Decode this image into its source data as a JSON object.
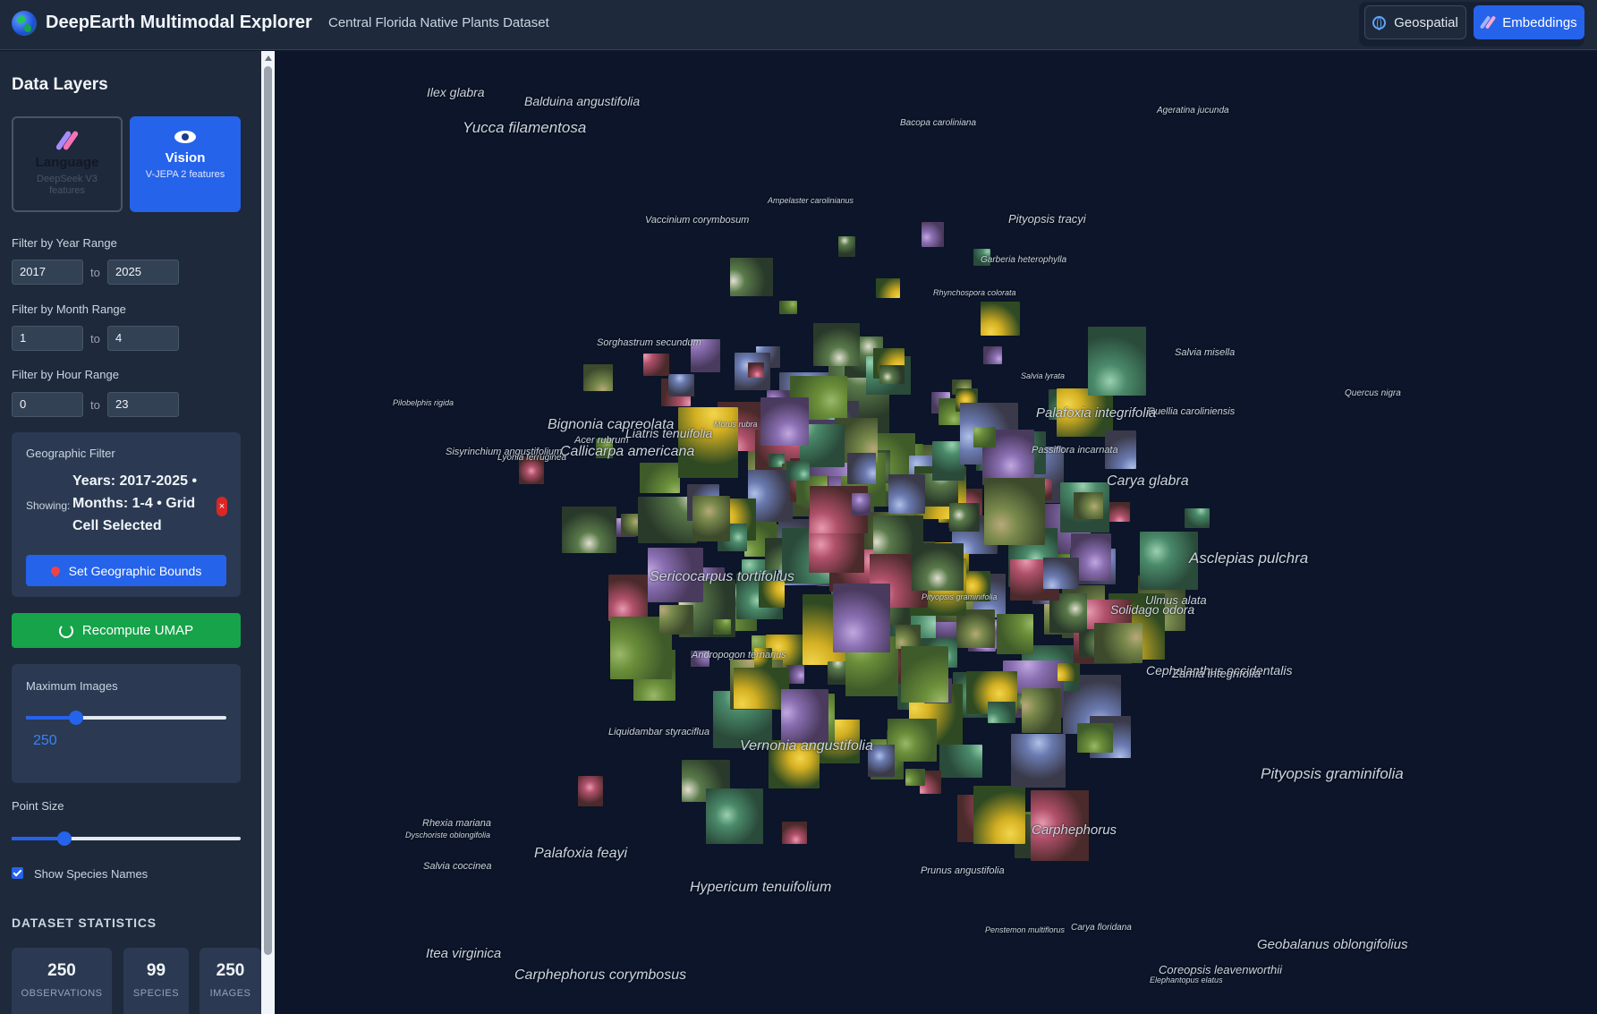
{
  "header": {
    "title": "DeepEarth Multimodal Explorer",
    "subtitle": "Central Florida Native Plants Dataset",
    "geospatial_label": "Geospatial",
    "embeddings_label": "Embeddings"
  },
  "sidebar": {
    "title": "Data Layers",
    "layers": [
      {
        "name": "Language",
        "desc": "DeepSeek V3 features",
        "active": false
      },
      {
        "name": "Vision",
        "desc": "V-JEPA 2 features",
        "active": true
      }
    ],
    "year": {
      "label": "Filter by Year Range",
      "from": "2017",
      "to": "2025"
    },
    "month": {
      "label": "Filter by Month Range",
      "from": "1",
      "to": "4"
    },
    "hour": {
      "label": "Filter by Hour Range",
      "from": "0",
      "to": "23"
    },
    "to_label": "to",
    "geo": {
      "title": "Geographic Filter",
      "showing": "Showing:",
      "text": "Years: 2017-2025 • Months: 1-4 • Grid Cell Selected",
      "clear": "×",
      "button": "Set Geographic Bounds"
    },
    "recompute": "Recompute UMAP",
    "max_images": {
      "label": "Maximum Images",
      "value": "250",
      "fraction": 0.25
    },
    "point_size": {
      "label": "Point Size",
      "fraction": 0.23
    },
    "show_names": {
      "label": "Show Species Names",
      "checked": true
    },
    "stats": {
      "title": "DATASET STATISTICS",
      "items": [
        {
          "num": "250",
          "label": "OBSERVATIONS"
        },
        {
          "num": "99",
          "label": "SPECIES"
        },
        {
          "num": "250",
          "label": "IMAGES"
        }
      ]
    }
  },
  "canvas": {
    "species_labels": [
      "Callicarpa americana",
      "Ulmus alata",
      "Vaccinium corymbosum",
      "Sericocarpus tortifolius",
      "Carya glabra",
      "Bacopa caroliniana",
      "Coreopsis leavenworthii",
      "Carphephorus",
      "Quercus nigra",
      "Morus rubra",
      "Acer rubrum",
      "Liquidambar styraciflua",
      "Passiflora incarnata",
      "Rhexia mariana",
      "Dyschoriste oblongifolia",
      "Vernonia angustifolia",
      "Pityopsis graminifolia",
      "Pilobelphis rigida",
      "Balduina angustifolia",
      "Hypericum tenuifolium",
      "Geobalanus oblongifolius",
      "Carya floridana",
      "Salvia coccinea",
      "Sorghastrum secundum",
      "Pityopsis tracyi",
      "Ruellia caroliniensis",
      "Ageratina jucunda",
      "Salvia lyrata",
      "Yucca filamentosa",
      "Palafoxia feayi",
      "Ampelaster carolinianus",
      "Solidago odora",
      "Sisyrinchium angustifolium",
      "Rhynchospora colorata",
      "Andropogon ternarius",
      "Bignonia capreolata",
      "Salvia misella",
      "Prunus angustifolia",
      "Lyonia ferruginea",
      "Elephantopus elatus",
      "Itea virginica",
      "Garberia heterophylla",
      "Carphephorus corymbosus",
      "Pityopsis graminifolia",
      "Liatris tenuifolia",
      "Penstemon multiflorus",
      "Palafoxia integrifolia",
      "Cephalanthus occidentalis",
      "Asclepias pulchra",
      "Ilex glabra",
      "Zamia integrifolia"
    ]
  },
  "colors": {
    "header_bg": "#1e293b",
    "canvas_bg": "#0c1529",
    "accent_blue": "#2563eb",
    "accent_green": "#16a34a",
    "danger": "#dc2626"
  }
}
